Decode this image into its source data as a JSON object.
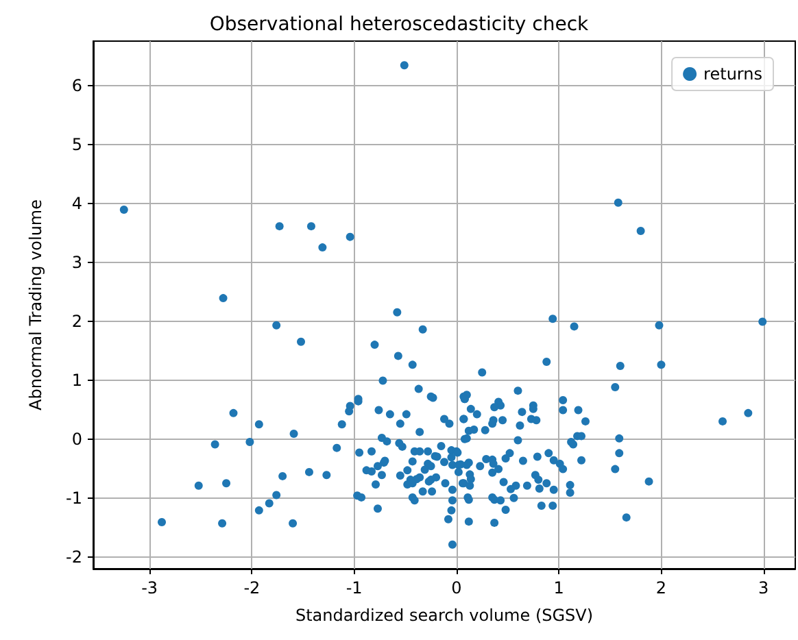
{
  "chart_data": {
    "type": "scatter",
    "title": "Observational heteroscedasticity check",
    "xlabel": "Standardized search volume (SGSV)",
    "ylabel": "Abnormal Trading volume",
    "xlim": [
      -3.55,
      3.31
    ],
    "ylim": [
      -2.2,
      6.75
    ],
    "xticks": [
      -3,
      -2,
      -1,
      0,
      1,
      2,
      3
    ],
    "yticks": [
      -2,
      -1,
      0,
      1,
      2,
      3,
      4,
      5,
      6
    ],
    "grid": true,
    "legend": "top right",
    "marker": "circle",
    "series": [
      {
        "name": "returns",
        "color": "#1f77b4",
        "x": [
          -0.51,
          -3.25,
          -1.73,
          -1.42,
          -1.31,
          -1.04,
          -2.28,
          1.58,
          1.8,
          -0.58,
          -1.76,
          -0.33,
          -1.52,
          -0.8,
          -0.57,
          -0.43,
          -0.72,
          -0.37,
          -0.25,
          -0.23,
          -0.96,
          -0.96,
          -1.04,
          -1.05,
          -0.76,
          -0.65,
          -0.49,
          -2.18,
          -1.93,
          -1.12,
          -0.55,
          -0.12,
          -0.07,
          -0.36,
          -1.59,
          -0.73,
          -0.68,
          -0.56,
          -0.53,
          -2.36,
          -2.02,
          -1.17,
          -0.95,
          -0.83,
          -0.41,
          -0.36,
          -0.28,
          -0.15,
          -0.05,
          0,
          -0.21,
          -0.19,
          -0.05,
          -0.7,
          -0.71,
          -0.77,
          -0.43,
          -0.28,
          -0.25,
          -0.31,
          -0.12,
          -0.04,
          0.02,
          -0.88,
          -0.83,
          -0.73,
          -0.55,
          -0.48,
          -0.36,
          -0.39,
          -0.25,
          -0.2,
          -0.45,
          -0.48,
          -0.43,
          -0.27,
          -0.11,
          -0.04,
          0.06,
          -0.24,
          -0.33,
          -0.79,
          -1.44,
          -1.27,
          -1.7,
          -2.52,
          -2.25,
          -1.76,
          -1.83,
          -1.93,
          -0.97,
          -0.93,
          -0.43,
          -0.41,
          -0.04,
          -0.77,
          -0.05,
          -0.08,
          -2.88,
          -2.29,
          -1.6,
          -0.04,
          0.08,
          0.07,
          0.07,
          0.08,
          0.94,
          1.15,
          1.98,
          2.99,
          0.88,
          1.6,
          2.0,
          0.25,
          1.55,
          0.6,
          0.1,
          0.08,
          1.04,
          0.14,
          0.2,
          0.41,
          0.43,
          0.37,
          0.75,
          0.75,
          0.64,
          1.04,
          1.19,
          0.07,
          0.36,
          0.35,
          0.45,
          0.73,
          0.78,
          0.62,
          1.26,
          2.6,
          2.85,
          0.28,
          0.17,
          0.12,
          1.18,
          1.22,
          0.1,
          0.6,
          1.12,
          1.14,
          1.59,
          0.01,
          0.52,
          0.48,
          0.9,
          1.59,
          0.29,
          0.35,
          0.36,
          0.65,
          0.79,
          0.95,
          1.22,
          0.12,
          0.1,
          0.04,
          0.23,
          0.41,
          1.01,
          1.04,
          1.55,
          0.02,
          0.13,
          0.14,
          0.35,
          0.77,
          0.8,
          0.07,
          0.13,
          0.46,
          0.58,
          0.53,
          0.69,
          0.88,
          0.81,
          0.95,
          1.11,
          1.11,
          1.88,
          0.35,
          0.37,
          0.11,
          0.12,
          0.43,
          0.56,
          0.83,
          0.94,
          0.48,
          0.12,
          0.37,
          1.66
        ],
        "values": [
          6.34,
          3.89,
          3.61,
          3.61,
          3.25,
          3.43,
          2.39,
          4.01,
          3.53,
          2.15,
          1.93,
          1.86,
          1.65,
          1.6,
          1.41,
          1.26,
          0.99,
          0.85,
          0.72,
          0.7,
          0.68,
          0.64,
          0.56,
          0.47,
          0.49,
          0.42,
          0.42,
          0.44,
          0.25,
          0.25,
          0.26,
          0.34,
          0.26,
          0.12,
          0.09,
          0.02,
          -0.04,
          -0.07,
          -0.13,
          -0.09,
          -0.05,
          -0.15,
          -0.23,
          -0.21,
          -0.21,
          -0.21,
          -0.21,
          -0.12,
          -0.19,
          -0.21,
          -0.29,
          -0.3,
          -0.31,
          -0.37,
          -0.4,
          -0.46,
          -0.38,
          -0.42,
          -0.46,
          -0.52,
          -0.39,
          -0.44,
          -0.44,
          -0.53,
          -0.55,
          -0.61,
          -0.62,
          -0.53,
          -0.65,
          -0.68,
          -0.69,
          -0.65,
          -0.69,
          -0.77,
          -0.75,
          -0.72,
          -0.75,
          -0.86,
          -0.75,
          -0.89,
          -0.89,
          -0.77,
          -0.56,
          -0.61,
          -0.63,
          -0.79,
          -0.75,
          -0.95,
          -1.09,
          -1.21,
          -0.96,
          -0.99,
          -0.99,
          -1.04,
          -1.04,
          -1.18,
          -1.21,
          -1.36,
          -1.41,
          -1.43,
          -1.43,
          -1.79,
          0.68,
          0.72,
          0.34,
          0,
          2.04,
          1.91,
          1.93,
          1.99,
          1.31,
          1.24,
          1.26,
          1.13,
          0.88,
          0.82,
          0.75,
          0.68,
          0.66,
          0.51,
          0.42,
          0.63,
          0.57,
          0.54,
          0.57,
          0.51,
          0.46,
          0.49,
          0.49,
          0.34,
          0.32,
          0.26,
          0.32,
          0.34,
          0.32,
          0.23,
          0.3,
          0.3,
          0.44,
          0.15,
          0.16,
          0.14,
          0.05,
          0.05,
          0.01,
          -0.02,
          -0.05,
          -0.09,
          0.01,
          -0.23,
          -0.24,
          -0.33,
          -0.24,
          -0.24,
          -0.34,
          -0.35,
          -0.42,
          -0.37,
          -0.3,
          -0.36,
          -0.36,
          -0.4,
          -0.44,
          -0.43,
          -0.46,
          -0.51,
          -0.42,
          -0.51,
          -0.51,
          -0.56,
          -0.6,
          -0.68,
          -0.57,
          -0.61,
          -0.69,
          -0.75,
          -0.79,
          -0.73,
          -0.79,
          -0.85,
          -0.79,
          -0.75,
          -0.84,
          -0.86,
          -0.78,
          -0.91,
          -0.72,
          -0.99,
          -1.03,
          -0.99,
          -1.03,
          -1.04,
          -1.0,
          -1.13,
          -1.13,
          -1.2,
          -1.4,
          -1.42,
          -1.33
        ]
      }
    ]
  }
}
